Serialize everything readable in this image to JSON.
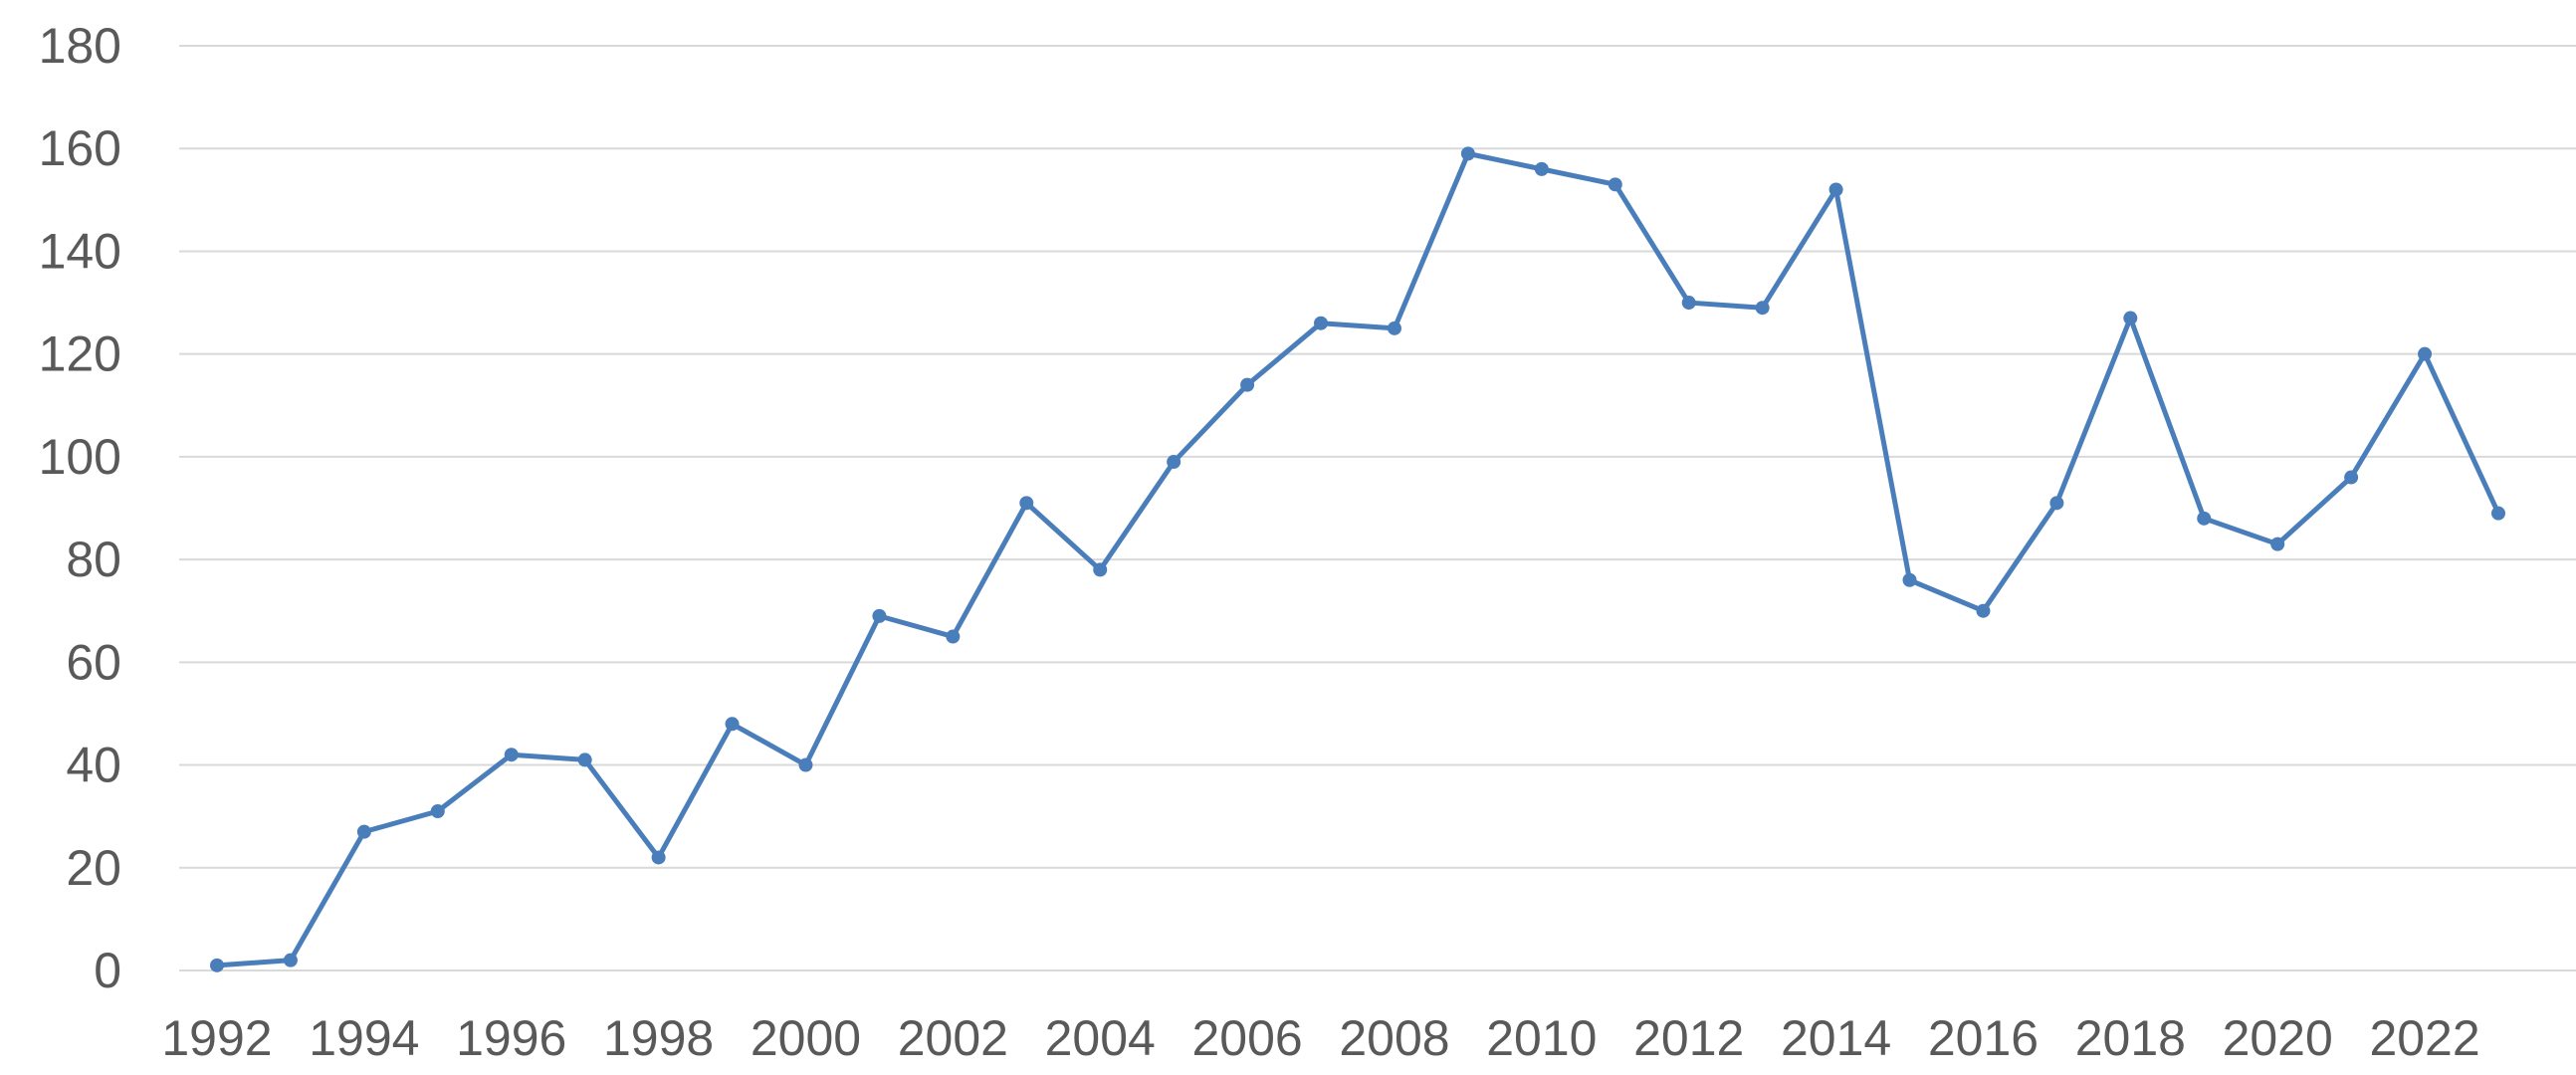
{
  "chart_data": {
    "type": "line",
    "title": "",
    "xlabel": "",
    "ylabel": "",
    "x": [
      1992,
      1993,
      1994,
      1995,
      1996,
      1997,
      1998,
      1999,
      2000,
      2001,
      2002,
      2003,
      2004,
      2005,
      2006,
      2007,
      2008,
      2009,
      2010,
      2011,
      2012,
      2013,
      2014,
      2015,
      2016,
      2017,
      2018,
      2019,
      2020,
      2021,
      2022,
      2023
    ],
    "x_tick_labels": [
      "1992",
      "1994",
      "1996",
      "1998",
      "2000",
      "2002",
      "2004",
      "2006",
      "2008",
      "2010",
      "2012",
      "2014",
      "2016",
      "2018",
      "2020",
      "2022"
    ],
    "y_tick_labels": [
      "0",
      "20",
      "40",
      "60",
      "80",
      "100",
      "120",
      "140",
      "160",
      "180"
    ],
    "xlim": [
      1992,
      2023
    ],
    "ylim": [
      0,
      180
    ],
    "y_ticks": [
      0,
      20,
      40,
      60,
      80,
      100,
      120,
      140,
      160,
      180
    ],
    "grid": "horizontal",
    "legend": "none",
    "series": [
      {
        "color": "#4a7ebb",
        "values": [
          1,
          2,
          27,
          31,
          42,
          41,
          22,
          48,
          40,
          69,
          65,
          91,
          78,
          99,
          114,
          126,
          125,
          159,
          156,
          153,
          130,
          129,
          152,
          76,
          70,
          91,
          127,
          88,
          83,
          96,
          120,
          89
        ]
      }
    ]
  }
}
